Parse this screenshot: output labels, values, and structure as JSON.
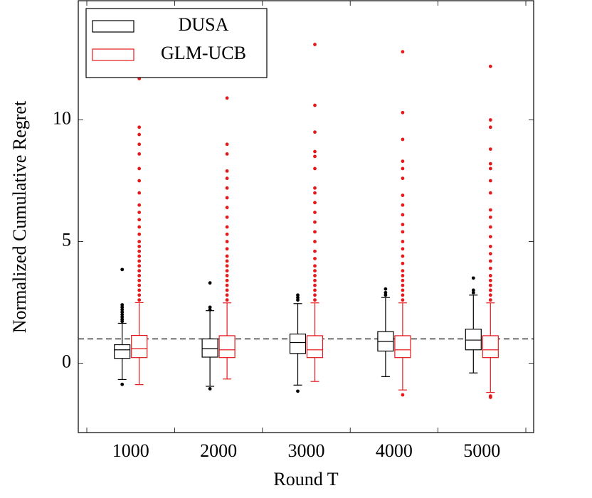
{
  "chart_data": {
    "type": "box",
    "xlabel": "Round T",
    "ylabel": "Normalized Cumulative Regret",
    "categories": [
      "1000",
      "2000",
      "3000",
      "4000",
      "5000"
    ],
    "ylim": [
      -2.85,
      14.9
    ],
    "yticks": [
      0,
      5,
      10
    ],
    "hline": 1,
    "legend": "upper left",
    "series": [
      {
        "name": "DUSA",
        "color": "#000000",
        "boxes": [
          {
            "low": -0.67,
            "q1": 0.2,
            "median": 0.55,
            "q3": 0.76,
            "high": 1.64,
            "outliers": [
              -0.87,
              1.72,
              1.8,
              1.9,
              2.0,
              2.1,
              2.2,
              2.3,
              2.4,
              3.85
            ]
          },
          {
            "low": -0.95,
            "q1": 0.25,
            "median": 0.6,
            "q3": 1.0,
            "high": 2.16,
            "outliers": [
              -1.05,
              2.2,
              2.3,
              3.3
            ]
          },
          {
            "low": -0.9,
            "q1": 0.4,
            "median": 0.85,
            "q3": 1.2,
            "high": 2.45,
            "outliers": [
              -1.15,
              2.6,
              2.7,
              2.8
            ]
          },
          {
            "low": -0.55,
            "q1": 0.5,
            "median": 0.9,
            "q3": 1.3,
            "high": 2.7,
            "outliers": [
              2.8,
              2.9,
              3.05
            ]
          },
          {
            "low": -0.4,
            "q1": 0.55,
            "median": 0.95,
            "q3": 1.4,
            "high": 2.8,
            "outliers": [
              2.9,
              3.0,
              3.5
            ]
          }
        ]
      },
      {
        "name": "GLM-UCB",
        "color": "#e41a1c",
        "boxes": [
          {
            "low": -0.88,
            "q1": 0.23,
            "median": 0.6,
            "q3": 1.14,
            "high": 2.49,
            "outliers": [
              2.6,
              2.8,
              3.0,
              3.2,
              3.4,
              3.6,
              3.8,
              4.0,
              4.2,
              4.4,
              4.6,
              4.8,
              5.0,
              5.3,
              5.6,
              5.9,
              6.2,
              6.5,
              7.0,
              7.5,
              8.0,
              8.6,
              9.0,
              9.4,
              9.7,
              11.7
            ]
          },
          {
            "low": -0.65,
            "q1": 0.23,
            "median": 0.55,
            "q3": 1.13,
            "high": 2.48,
            "outliers": [
              2.6,
              2.8,
              3.0,
              3.2,
              3.4,
              3.6,
              3.8,
              4.0,
              4.2,
              4.4,
              4.7,
              5.0,
              5.3,
              5.6,
              6.0,
              6.4,
              6.8,
              7.2,
              7.6,
              7.9,
              8.6,
              9.0,
              10.9
            ]
          },
          {
            "low": -0.75,
            "q1": 0.23,
            "median": 0.55,
            "q3": 1.13,
            "high": 2.48,
            "outliers": [
              2.6,
              2.8,
              3.0,
              3.2,
              3.4,
              3.6,
              3.8,
              4.0,
              4.3,
              4.6,
              5.0,
              5.4,
              5.8,
              6.2,
              6.6,
              7.0,
              7.2,
              8.0,
              8.5,
              8.7,
              9.5,
              10.6,
              13.1
            ]
          },
          {
            "low": -1.1,
            "q1": 0.23,
            "median": 0.55,
            "q3": 1.13,
            "high": 2.48,
            "outliers": [
              -1.3,
              2.6,
              2.8,
              3.0,
              3.2,
              3.4,
              3.6,
              3.8,
              4.1,
              4.4,
              4.7,
              5.0,
              5.4,
              5.7,
              6.1,
              6.5,
              6.9,
              7.6,
              8.0,
              8.3,
              9.2,
              10.3,
              12.8
            ]
          },
          {
            "low": -1.2,
            "q1": 0.23,
            "median": 0.55,
            "q3": 1.13,
            "high": 2.48,
            "outliers": [
              -1.4,
              -1.35,
              2.6,
              2.8,
              3.0,
              3.2,
              3.4,
              3.6,
              3.9,
              4.2,
              4.5,
              4.8,
              5.2,
              5.6,
              6.0,
              6.3,
              7.0,
              7.5,
              8.0,
              8.2,
              8.8,
              9.7,
              10.0,
              12.2
            ]
          }
        ]
      }
    ]
  }
}
